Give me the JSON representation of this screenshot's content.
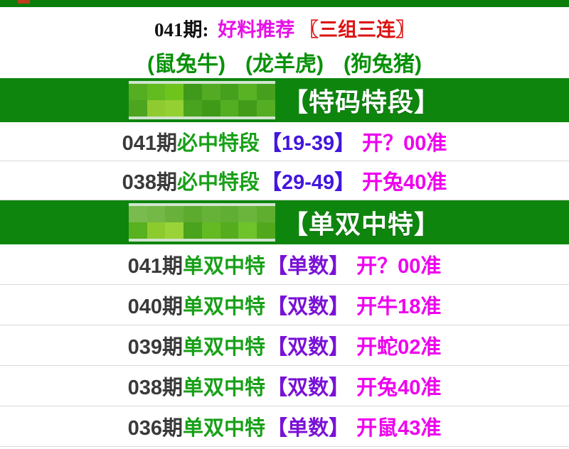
{
  "topbar": {
    "bg": "#0a7d0a",
    "mark_color": "#c03a1e"
  },
  "header": {
    "issue_prefix": "041期:",
    "promo": "好料推荐",
    "promo_bracket": "〖三组三连〗",
    "groups": [
      "(鼠兔牛)",
      "(龙羊虎)",
      "(狗兔猪)"
    ]
  },
  "sections": [
    {
      "banner_title": "【特码特段】",
      "rows": [
        {
          "issue": "041期",
          "label": "必中特段",
          "pick": "【19-39】",
          "result": "开？00准"
        },
        {
          "issue": "038期",
          "label": "必中特段",
          "pick": "【29-49】",
          "result": "开兔40准"
        }
      ]
    },
    {
      "banner_title": "【单双中特】",
      "rows": [
        {
          "issue": "041期",
          "label": "单双中特",
          "pick": "【单数】",
          "result": "开？00准"
        },
        {
          "issue": "040期",
          "label": "单双中特",
          "pick": "【双数】",
          "result": "开牛18准"
        },
        {
          "issue": "039期",
          "label": "单双中特",
          "pick": "【双数】",
          "result": "开蛇02准"
        },
        {
          "issue": "038期",
          "label": "单双中特",
          "pick": "【双数】",
          "result": "开兔40准"
        },
        {
          "issue": "036期",
          "label": "单双中特",
          "pick": "【单数】",
          "result": "开鼠43准"
        }
      ]
    }
  ],
  "colors": {
    "banner_bg": "#0e860e",
    "banner_title": "#ffffff",
    "issue_gray": "#3a3a3a",
    "label_green": "#18a018",
    "pick_section1": "#4316dd",
    "pick_section2": "#7911d6",
    "result_magenta": "#ee00ee",
    "promo_magenta": "#e611e6",
    "bracket_red": "#dd1111",
    "groups_green": "#089108",
    "row_border": "#d9d9d9"
  },
  "mosaic": [
    {
      "cells": [
        "#55ad22",
        "#62bb1f",
        "#6fc31d",
        "#3f9a1b",
        "#52ab23",
        "#45a01e",
        "#58b224",
        "#47a01d",
        "#4ca41f",
        "#8fcb30",
        "#95d033",
        "#4aa31e",
        "#3f9a17",
        "#54ae22",
        "#429c19",
        "#55ad24"
      ]
    },
    {
      "cells": [
        "#79bb4e",
        "#74b847",
        "#68b13a",
        "#5cab2e",
        "#66b238",
        "#60ae33",
        "#6bb53d",
        "#5fae30",
        "#58b11f",
        "#8ccb2e",
        "#9ad337",
        "#49a31c",
        "#63ba22",
        "#55ad1e",
        "#6ec32a",
        "#52a81d"
      ]
    }
  ]
}
